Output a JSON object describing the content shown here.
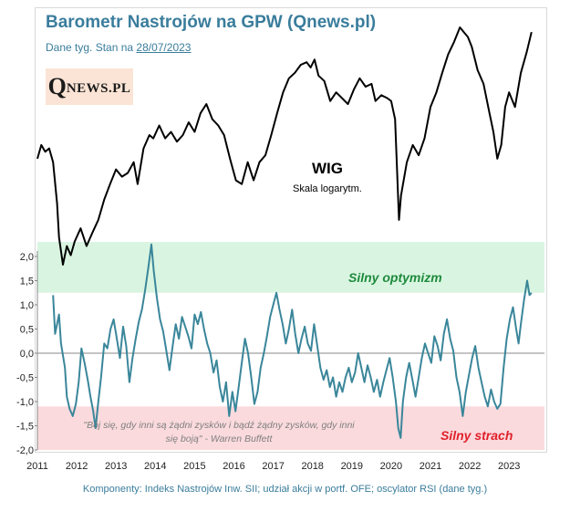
{
  "title": "Barometr Nastrojów  na GPW (Qnews.pl)",
  "subtitle_prefix": "Dane tyg. Stan na ",
  "subtitle_date": "28/07/2023",
  "logo": {
    "q": "Q",
    "rest": "NEWS.PL"
  },
  "wig_label": "WIG",
  "wig_sublabel": "Skala logarytm.",
  "zone_optimism_label": "Silny optymizm",
  "zone_fear_label": "Silny strach",
  "quote": "\"Bój się, gdy inni są żądni zysków i bądź żądny zysków, gdy inni się boją\" - Warren Buffett",
  "footer": "Komponenty:  Indeks Nastrojów Inw. SII; udział akcji w portf. OFE; oscylator RSI (dane tyg.)",
  "colors": {
    "title": "#3a7d9c",
    "barometer_line": "#3a869a",
    "wig_line": "#000000",
    "optimism_band": "#d9f5e1",
    "fear_band": "#fadadd",
    "optimism_text": "#1e8a3c",
    "fear_text": "#e0202a"
  },
  "chart_data": {
    "type": "line",
    "xlabel": "",
    "ylabel": "",
    "x_ticks": [
      "2011",
      "2012",
      "2013",
      "2014",
      "2015",
      "2016",
      "2017",
      "2018",
      "2019",
      "2020",
      "2021",
      "2022",
      "2023"
    ],
    "y_ticks": [
      "2,0",
      "1,5",
      "1,0",
      "0,5",
      "0,0",
      "-0,5",
      "-1,0",
      "-1,5",
      "-2,0"
    ],
    "ylim": [
      -2.0,
      2.0
    ],
    "zones": {
      "optimism": [
        1.25,
        2.3
      ],
      "fear": [
        -2.0,
        -1.1
      ]
    },
    "series": [
      {
        "name": "WIG",
        "scale": "log",
        "points": [
          [
            2011.0,
            48000
          ],
          [
            2011.1,
            50000
          ],
          [
            2011.2,
            49000
          ],
          [
            2011.3,
            49500
          ],
          [
            2011.4,
            47500
          ],
          [
            2011.5,
            42000
          ],
          [
            2011.55,
            38000
          ],
          [
            2011.65,
            35000
          ],
          [
            2011.75,
            37000
          ],
          [
            2011.85,
            36000
          ],
          [
            2011.95,
            37500
          ],
          [
            2012.1,
            39000
          ],
          [
            2012.25,
            37000
          ],
          [
            2012.4,
            38500
          ],
          [
            2012.55,
            40000
          ],
          [
            2012.7,
            42500
          ],
          [
            2012.85,
            44500
          ],
          [
            2013.0,
            46500
          ],
          [
            2013.15,
            45500
          ],
          [
            2013.3,
            46000
          ],
          [
            2013.45,
            47500
          ],
          [
            2013.55,
            44500
          ],
          [
            2013.7,
            49500
          ],
          [
            2013.85,
            51500
          ],
          [
            2013.95,
            51000
          ],
          [
            2014.1,
            53000
          ],
          [
            2014.25,
            51000
          ],
          [
            2014.4,
            52000
          ],
          [
            2014.55,
            50500
          ],
          [
            2014.7,
            51500
          ],
          [
            2014.85,
            53500
          ],
          [
            2015.0,
            52000
          ],
          [
            2015.15,
            55000
          ],
          [
            2015.3,
            56500
          ],
          [
            2015.45,
            54000
          ],
          [
            2015.6,
            53000
          ],
          [
            2015.75,
            51500
          ],
          [
            2015.9,
            48000
          ],
          [
            2016.05,
            45000
          ],
          [
            2016.2,
            44500
          ],
          [
            2016.35,
            47500
          ],
          [
            2016.5,
            45000
          ],
          [
            2016.65,
            47500
          ],
          [
            2016.8,
            48500
          ],
          [
            2016.95,
            51500
          ],
          [
            2017.1,
            55000
          ],
          [
            2017.25,
            58500
          ],
          [
            2017.4,
            61000
          ],
          [
            2017.55,
            62000
          ],
          [
            2017.7,
            63500
          ],
          [
            2017.85,
            64000
          ],
          [
            2017.95,
            63000
          ],
          [
            2018.05,
            64500
          ],
          [
            2018.15,
            61500
          ],
          [
            2018.3,
            60500
          ],
          [
            2018.45,
            57000
          ],
          [
            2018.6,
            58500
          ],
          [
            2018.75,
            57500
          ],
          [
            2018.9,
            56500
          ],
          [
            2019.05,
            59000
          ],
          [
            2019.2,
            61000
          ],
          [
            2019.35,
            59500
          ],
          [
            2019.5,
            60000
          ],
          [
            2019.6,
            57000
          ],
          [
            2019.75,
            58000
          ],
          [
            2019.9,
            57500
          ],
          [
            2020.0,
            57000
          ],
          [
            2020.1,
            54000
          ],
          [
            2020.2,
            40000
          ],
          [
            2020.25,
            43000
          ],
          [
            2020.4,
            47500
          ],
          [
            2020.55,
            50000
          ],
          [
            2020.7,
            48500
          ],
          [
            2020.85,
            51000
          ],
          [
            2021.0,
            56000
          ],
          [
            2021.15,
            58500
          ],
          [
            2021.3,
            62000
          ],
          [
            2021.45,
            65500
          ],
          [
            2021.6,
            68000
          ],
          [
            2021.75,
            71000
          ],
          [
            2021.85,
            70000
          ],
          [
            2021.95,
            69000
          ],
          [
            2022.05,
            67000
          ],
          [
            2022.2,
            62500
          ],
          [
            2022.35,
            60000
          ],
          [
            2022.5,
            55000
          ],
          [
            2022.6,
            52000
          ],
          [
            2022.7,
            48000
          ],
          [
            2022.8,
            50000
          ],
          [
            2022.9,
            56000
          ],
          [
            2023.0,
            58500
          ],
          [
            2023.15,
            56000
          ],
          [
            2023.3,
            62000
          ],
          [
            2023.45,
            66000
          ],
          [
            2023.57,
            70000
          ]
        ]
      },
      {
        "name": "Barometr Nastrojów",
        "points": [
          [
            2011.4,
            1.2
          ],
          [
            2011.45,
            0.4
          ],
          [
            2011.55,
            0.8
          ],
          [
            2011.6,
            0.2
          ],
          [
            2011.7,
            -0.3
          ],
          [
            2011.75,
            -0.9
          ],
          [
            2011.82,
            -1.15
          ],
          [
            2011.9,
            -1.3
          ],
          [
            2011.98,
            -1.05
          ],
          [
            2012.05,
            -0.6
          ],
          [
            2012.12,
            0.1
          ],
          [
            2012.2,
            -0.2
          ],
          [
            2012.28,
            -0.55
          ],
          [
            2012.35,
            -0.9
          ],
          [
            2012.42,
            -1.2
          ],
          [
            2012.48,
            -1.55
          ],
          [
            2012.55,
            -1.0
          ],
          [
            2012.62,
            -0.5
          ],
          [
            2012.7,
            0.2
          ],
          [
            2012.78,
            0.1
          ],
          [
            2012.86,
            0.5
          ],
          [
            2012.94,
            0.7
          ],
          [
            2013.02,
            0.3
          ],
          [
            2013.1,
            -0.1
          ],
          [
            2013.18,
            0.55
          ],
          [
            2013.26,
            0.15
          ],
          [
            2013.34,
            -0.6
          ],
          [
            2013.42,
            -0.1
          ],
          [
            2013.5,
            0.3
          ],
          [
            2013.58,
            0.65
          ],
          [
            2013.66,
            0.9
          ],
          [
            2013.74,
            1.3
          ],
          [
            2013.82,
            1.75
          ],
          [
            2013.9,
            2.25
          ],
          [
            2013.96,
            1.7
          ],
          [
            2014.04,
            1.15
          ],
          [
            2014.12,
            0.7
          ],
          [
            2014.2,
            0.45
          ],
          [
            2014.28,
            0.05
          ],
          [
            2014.36,
            -0.35
          ],
          [
            2014.44,
            0.15
          ],
          [
            2014.52,
            0.6
          ],
          [
            2014.6,
            0.3
          ],
          [
            2014.68,
            0.75
          ],
          [
            2014.76,
            0.55
          ],
          [
            2014.84,
            0.35
          ],
          [
            2014.92,
            0.1
          ],
          [
            2015.0,
            0.8
          ],
          [
            2015.08,
            0.6
          ],
          [
            2015.16,
            0.85
          ],
          [
            2015.24,
            0.5
          ],
          [
            2015.32,
            0.2
          ],
          [
            2015.4,
            0.0
          ],
          [
            2015.48,
            -0.4
          ],
          [
            2015.56,
            -0.15
          ],
          [
            2015.64,
            -0.7
          ],
          [
            2015.72,
            -1.0
          ],
          [
            2015.8,
            -0.6
          ],
          [
            2015.88,
            -1.3
          ],
          [
            2015.96,
            -0.8
          ],
          [
            2016.04,
            -1.2
          ],
          [
            2016.12,
            -0.7
          ],
          [
            2016.2,
            -0.2
          ],
          [
            2016.28,
            0.3
          ],
          [
            2016.36,
            0.0
          ],
          [
            2016.44,
            -0.5
          ],
          [
            2016.52,
            -1.05
          ],
          [
            2016.6,
            -0.8
          ],
          [
            2016.68,
            -0.3
          ],
          [
            2016.76,
            0.0
          ],
          [
            2016.84,
            0.35
          ],
          [
            2016.92,
            0.75
          ],
          [
            2017.0,
            1.0
          ],
          [
            2017.08,
            1.25
          ],
          [
            2017.16,
            0.9
          ],
          [
            2017.24,
            0.6
          ],
          [
            2017.32,
            0.2
          ],
          [
            2017.4,
            0.5
          ],
          [
            2017.48,
            0.9
          ],
          [
            2017.56,
            0.4
          ],
          [
            2017.64,
            0.0
          ],
          [
            2017.72,
            0.3
          ],
          [
            2017.8,
            0.55
          ],
          [
            2017.88,
            0.2
          ],
          [
            2017.96,
            0.05
          ],
          [
            2018.04,
            0.6
          ],
          [
            2018.12,
            0.15
          ],
          [
            2018.2,
            -0.3
          ],
          [
            2018.28,
            -0.55
          ],
          [
            2018.36,
            -0.35
          ],
          [
            2018.44,
            -0.7
          ],
          [
            2018.52,
            -0.5
          ],
          [
            2018.6,
            -0.9
          ],
          [
            2018.68,
            -0.6
          ],
          [
            2018.76,
            -0.8
          ],
          [
            2018.84,
            -0.5
          ],
          [
            2018.92,
            -0.3
          ],
          [
            2019.0,
            -0.6
          ],
          [
            2019.08,
            -0.4
          ],
          [
            2019.16,
            0.0
          ],
          [
            2019.24,
            -0.3
          ],
          [
            2019.32,
            -0.6
          ],
          [
            2019.4,
            -0.25
          ],
          [
            2019.48,
            -0.5
          ],
          [
            2019.56,
            -0.8
          ],
          [
            2019.64,
            -0.55
          ],
          [
            2019.72,
            -0.9
          ],
          [
            2019.8,
            -0.6
          ],
          [
            2019.88,
            -0.35
          ],
          [
            2019.96,
            -0.1
          ],
          [
            2020.04,
            -0.5
          ],
          [
            2020.12,
            -1.0
          ],
          [
            2020.18,
            -1.55
          ],
          [
            2020.24,
            -1.75
          ],
          [
            2020.3,
            -1.0
          ],
          [
            2020.38,
            -0.5
          ],
          [
            2020.46,
            -0.2
          ],
          [
            2020.54,
            -0.55
          ],
          [
            2020.62,
            -0.9
          ],
          [
            2020.7,
            -0.5
          ],
          [
            2020.78,
            -0.1
          ],
          [
            2020.86,
            0.2
          ],
          [
            2020.94,
            0.0
          ],
          [
            2021.02,
            -0.2
          ],
          [
            2021.1,
            0.35
          ],
          [
            2021.18,
            0.15
          ],
          [
            2021.26,
            -0.15
          ],
          [
            2021.34,
            0.4
          ],
          [
            2021.42,
            0.7
          ],
          [
            2021.5,
            0.3
          ],
          [
            2021.58,
            0.05
          ],
          [
            2021.66,
            -0.5
          ],
          [
            2021.74,
            -0.8
          ],
          [
            2021.82,
            -1.3
          ],
          [
            2021.9,
            -0.8
          ],
          [
            2021.98,
            -0.45
          ],
          [
            2022.06,
            -0.1
          ],
          [
            2022.14,
            0.15
          ],
          [
            2022.22,
            -0.3
          ],
          [
            2022.3,
            -0.6
          ],
          [
            2022.38,
            -0.9
          ],
          [
            2022.46,
            -1.1
          ],
          [
            2022.54,
            -0.75
          ],
          [
            2022.62,
            -1.0
          ],
          [
            2022.7,
            -1.15
          ],
          [
            2022.78,
            -1.05
          ],
          [
            2022.86,
            -0.3
          ],
          [
            2022.94,
            0.3
          ],
          [
            2023.02,
            0.7
          ],
          [
            2023.1,
            0.95
          ],
          [
            2023.18,
            0.5
          ],
          [
            2023.24,
            0.2
          ],
          [
            2023.3,
            0.6
          ],
          [
            2023.38,
            1.1
          ],
          [
            2023.46,
            1.5
          ],
          [
            2023.52,
            1.2
          ],
          [
            2023.57,
            1.25
          ]
        ]
      }
    ]
  }
}
